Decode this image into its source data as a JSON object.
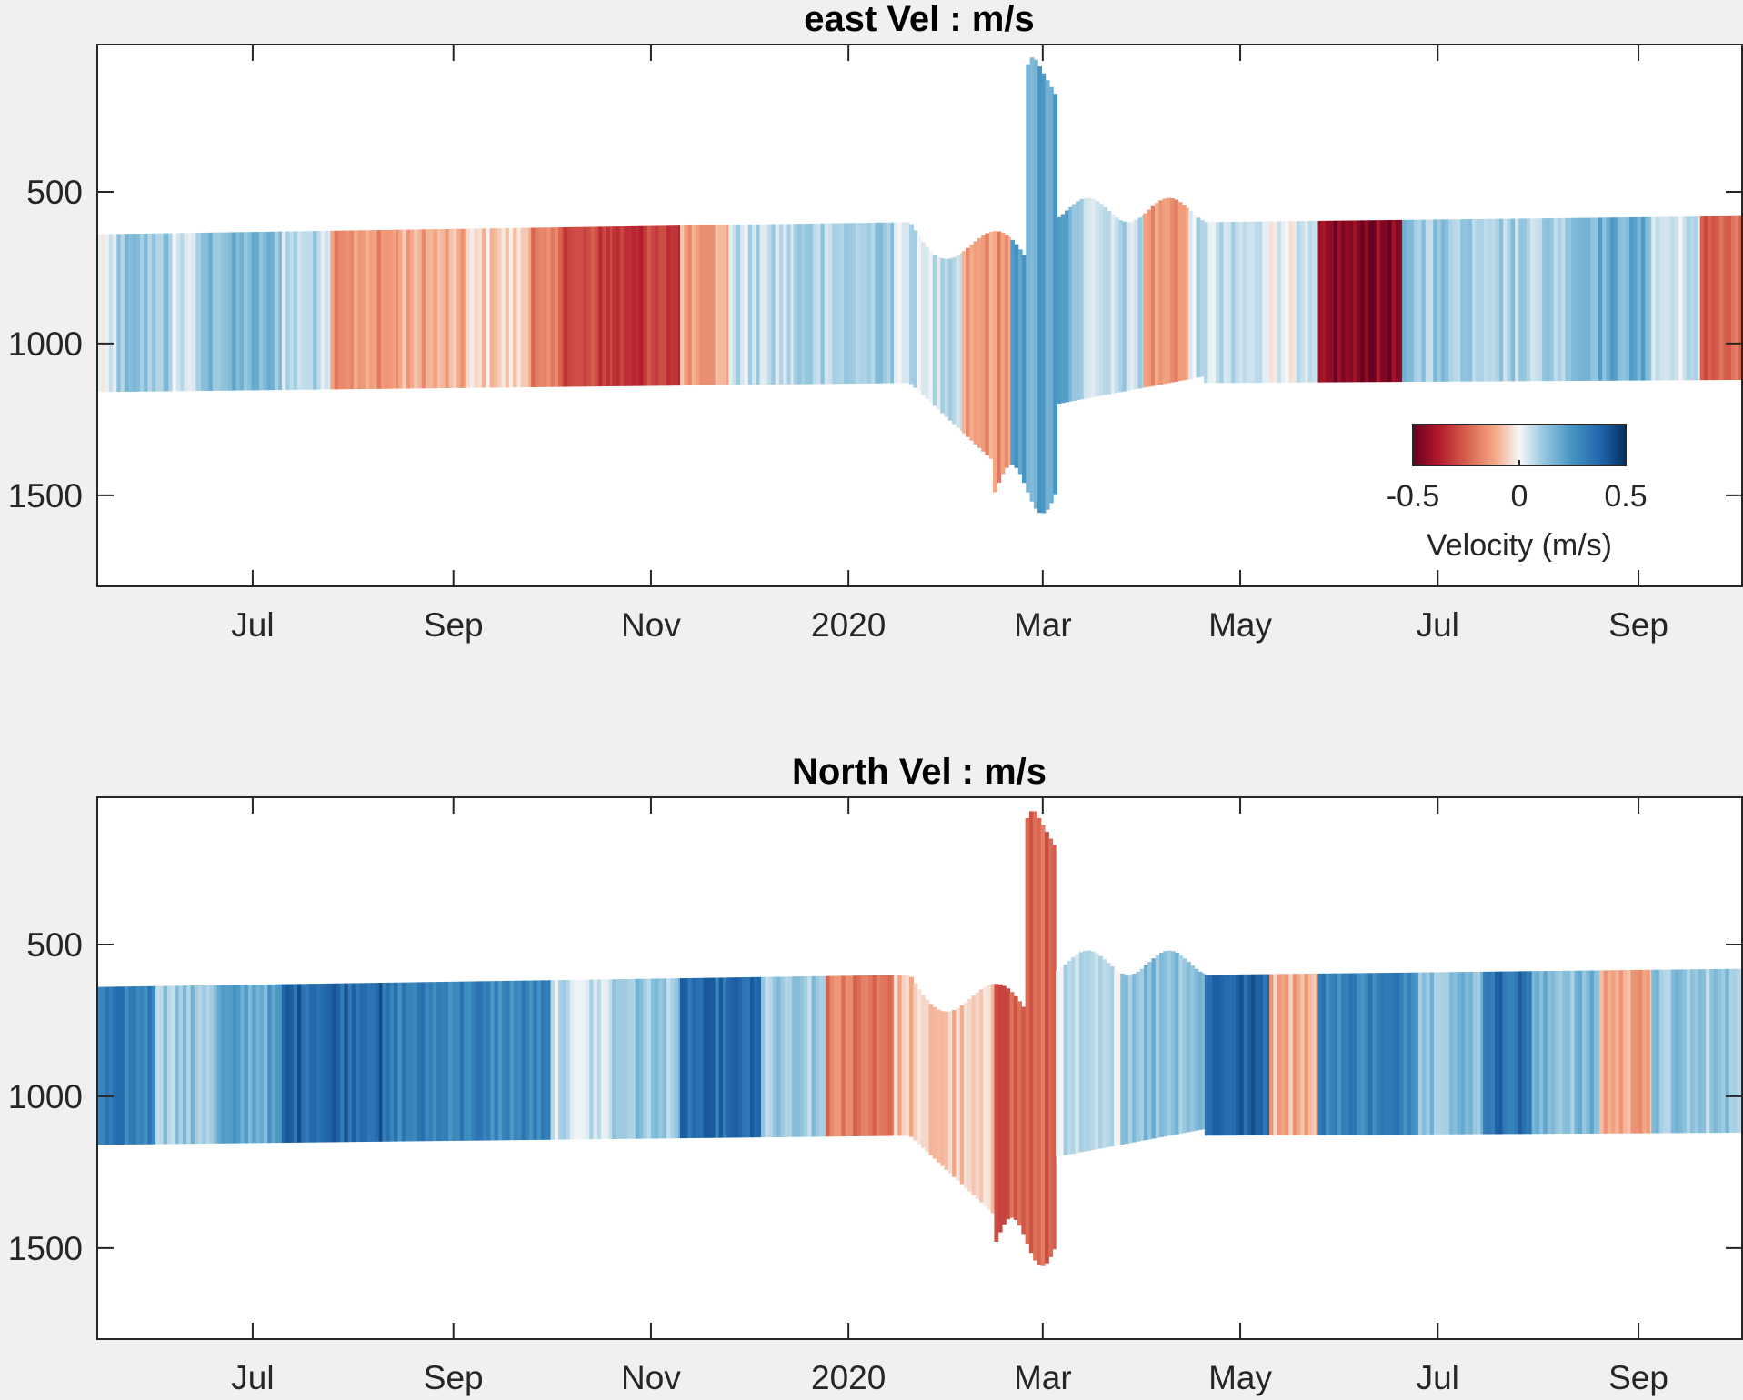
{
  "chart_data": [
    {
      "type": "heatmap",
      "title": "east Vel : m/s",
      "x_axis": {
        "type": "date",
        "range": [
          "2019-05-14",
          "2020-10-03"
        ],
        "ticks": [
          {
            "date": "2019-07-01",
            "label": "Jul"
          },
          {
            "date": "2019-09-01",
            "label": "Sep"
          },
          {
            "date": "2019-11-01",
            "label": "Nov"
          },
          {
            "date": "2020-01-01",
            "label": "2020"
          },
          {
            "date": "2020-03-01",
            "label": "Mar"
          },
          {
            "date": "2020-05-01",
            "label": "May"
          },
          {
            "date": "2020-07-01",
            "label": "Jul"
          },
          {
            "date": "2020-09-01",
            "label": "Sep"
          }
        ]
      },
      "y_axis": {
        "reversed": true,
        "range": [
          15,
          1800
        ],
        "ticks": [
          500,
          1000,
          1500
        ]
      },
      "colorbar": {
        "label": "Velocity (m/s)",
        "range": [
          -0.5,
          0.5
        ],
        "ticks": [
          -0.5,
          0,
          0.5
        ],
        "tick_labels": [
          "-0.5",
          "0",
          "0.5"
        ],
        "colormap": "red-white-blue (diverging)",
        "neg_color": "#67001f",
        "pos_color": "#053061",
        "zero_color": "#f7f7f7",
        "placement": "inside lower-right"
      },
      "bands": [
        {
          "start": "2019-05-14",
          "end": "2019-05-20",
          "value": 0.0
        },
        {
          "start": "2019-05-20",
          "end": "2019-06-05",
          "value": 0.12
        },
        {
          "start": "2019-06-05",
          "end": "2019-06-15",
          "value": 0.05
        },
        {
          "start": "2019-06-15",
          "end": "2019-07-10",
          "value": 0.15
        },
        {
          "start": "2019-07-10",
          "end": "2019-07-25",
          "value": 0.08
        },
        {
          "start": "2019-07-25",
          "end": "2019-08-15",
          "value": -0.15
        },
        {
          "start": "2019-08-15",
          "end": "2019-09-05",
          "value": -0.12
        },
        {
          "start": "2019-09-05",
          "end": "2019-09-25",
          "value": -0.06
        },
        {
          "start": "2019-09-25",
          "end": "2019-10-05",
          "value": -0.22
        },
        {
          "start": "2019-10-05",
          "end": "2019-10-20",
          "value": -0.3
        },
        {
          "start": "2019-10-20",
          "end": "2019-11-10",
          "value": -0.32
        },
        {
          "start": "2019-11-10",
          "end": "2019-11-25",
          "value": -0.12
        },
        {
          "start": "2019-11-25",
          "end": "2019-12-15",
          "value": 0.06
        },
        {
          "start": "2019-12-15",
          "end": "2020-01-15",
          "value": 0.1
        },
        {
          "start": "2020-01-15",
          "end": "2020-02-05",
          "value": 0.05
        },
        {
          "start": "2020-02-05",
          "end": "2020-02-20",
          "value": -0.15
        },
        {
          "start": "2020-02-20",
          "end": "2020-03-10",
          "value": 0.2
        },
        {
          "start": "2020-03-10",
          "end": "2020-04-01",
          "value": 0.08
        },
        {
          "start": "2020-04-01",
          "end": "2020-04-15",
          "value": -0.15
        },
        {
          "start": "2020-04-15",
          "end": "2020-05-10",
          "value": 0.05
        },
        {
          "start": "2020-05-10",
          "end": "2020-05-25",
          "value": 0.02
        },
        {
          "start": "2020-05-25",
          "end": "2020-06-20",
          "value": -0.45
        },
        {
          "start": "2020-06-20",
          "end": "2020-07-20",
          "value": 0.12
        },
        {
          "start": "2020-07-20",
          "end": "2020-08-10",
          "value": 0.1
        },
        {
          "start": "2020-08-10",
          "end": "2020-09-05",
          "value": 0.18
        },
        {
          "start": "2020-09-05",
          "end": "2020-09-20",
          "value": 0.05
        },
        {
          "start": "2020-09-20",
          "end": "2020-10-03",
          "value": -0.25
        }
      ]
    },
    {
      "type": "heatmap",
      "title": "North Vel : m/s",
      "x_axis": {
        "type": "date",
        "range": [
          "2019-05-14",
          "2020-10-03"
        ],
        "ticks": [
          {
            "date": "2019-07-01",
            "label": "Jul"
          },
          {
            "date": "2019-09-01",
            "label": "Sep"
          },
          {
            "date": "2019-11-01",
            "label": "Nov"
          },
          {
            "date": "2020-01-01",
            "label": "2020"
          },
          {
            "date": "2020-03-01",
            "label": "Mar"
          },
          {
            "date": "2020-05-01",
            "label": "May"
          },
          {
            "date": "2020-07-01",
            "label": "Jul"
          },
          {
            "date": "2020-09-01",
            "label": "Sep"
          }
        ]
      },
      "y_axis": {
        "reversed": true,
        "range": [
          15,
          1800
        ],
        "ticks": [
          500,
          1000,
          1500
        ]
      },
      "bands": [
        {
          "start": "2019-05-14",
          "end": "2019-06-01",
          "value": 0.3
        },
        {
          "start": "2019-06-01",
          "end": "2019-06-20",
          "value": 0.12
        },
        {
          "start": "2019-06-20",
          "end": "2019-07-10",
          "value": 0.2
        },
        {
          "start": "2019-07-10",
          "end": "2019-08-10",
          "value": 0.38
        },
        {
          "start": "2019-08-10",
          "end": "2019-09-10",
          "value": 0.3
        },
        {
          "start": "2019-09-10",
          "end": "2019-10-01",
          "value": 0.28
        },
        {
          "start": "2019-10-01",
          "end": "2019-10-20",
          "value": 0.05
        },
        {
          "start": "2019-10-20",
          "end": "2019-11-10",
          "value": 0.12
        },
        {
          "start": "2019-11-10",
          "end": "2019-12-05",
          "value": 0.35
        },
        {
          "start": "2019-12-05",
          "end": "2019-12-25",
          "value": 0.1
        },
        {
          "start": "2019-12-25",
          "end": "2020-01-15",
          "value": -0.2
        },
        {
          "start": "2020-01-15",
          "end": "2020-02-15",
          "value": -0.08
        },
        {
          "start": "2020-02-15",
          "end": "2020-03-05",
          "value": -0.25
        },
        {
          "start": "2020-03-05",
          "end": "2020-03-25",
          "value": 0.05
        },
        {
          "start": "2020-03-25",
          "end": "2020-04-20",
          "value": 0.15
        },
        {
          "start": "2020-04-20",
          "end": "2020-05-10",
          "value": 0.38
        },
        {
          "start": "2020-05-10",
          "end": "2020-05-25",
          "value": -0.1
        },
        {
          "start": "2020-05-25",
          "end": "2020-06-25",
          "value": 0.3
        },
        {
          "start": "2020-06-25",
          "end": "2020-07-15",
          "value": 0.15
        },
        {
          "start": "2020-07-15",
          "end": "2020-07-30",
          "value": 0.35
        },
        {
          "start": "2020-07-30",
          "end": "2020-08-20",
          "value": 0.15
        },
        {
          "start": "2020-08-20",
          "end": "2020-09-05",
          "value": -0.12
        },
        {
          "start": "2020-09-05",
          "end": "2020-10-03",
          "value": 0.12
        }
      ]
    }
  ]
}
